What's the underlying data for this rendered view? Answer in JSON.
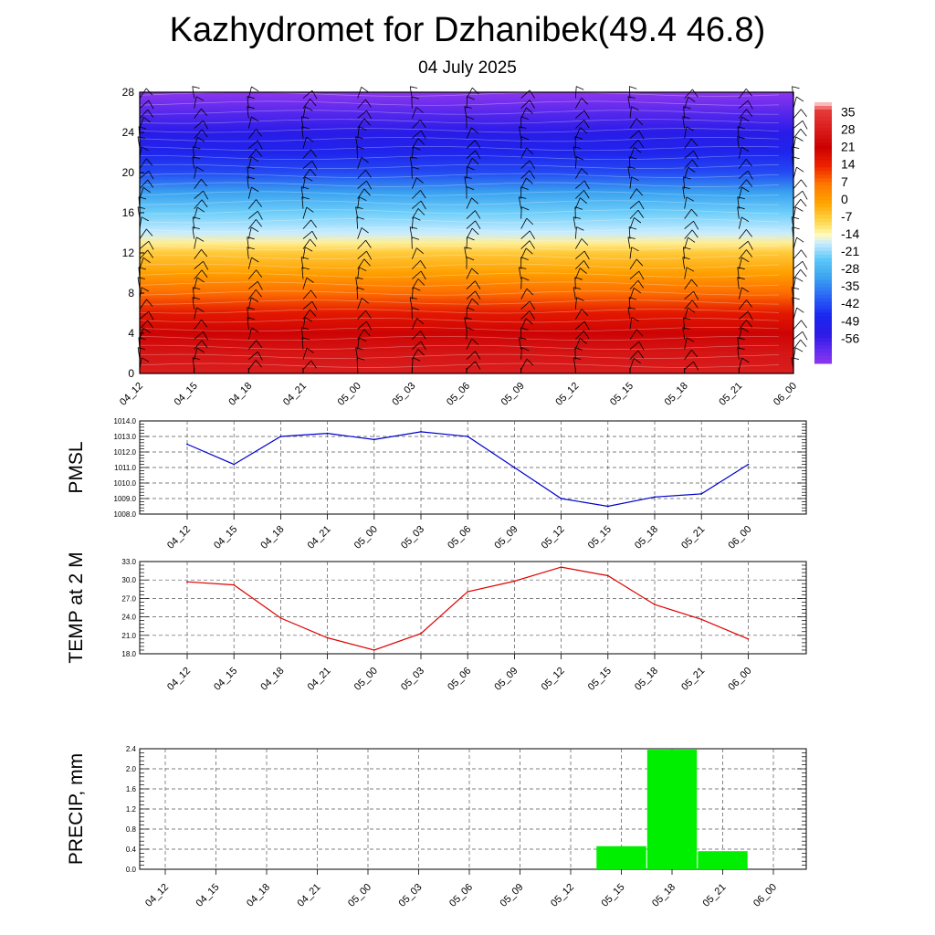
{
  "title": "Kazhydromet for Dzhanibek(49.4 46.8)",
  "subtitle": "04 July 2025",
  "chart_data": [
    {
      "type": "heatmap",
      "title": "",
      "x": [
        "04_12",
        "04_15",
        "04_18",
        "04_21",
        "05_00",
        "05_03",
        "05_06",
        "05_09",
        "05_12",
        "05_15",
        "05_18",
        "05_21",
        "06_00"
      ],
      "y_ticks": [
        0,
        4,
        8,
        12,
        16,
        20,
        24,
        28
      ],
      "ylim": [
        0,
        28
      ],
      "legend": {
        "position": "right",
        "labels": [
          35,
          28,
          21,
          14,
          7,
          0,
          -7,
          -14,
          -21,
          -28,
          -35,
          -42,
          -49,
          -56
        ],
        "color_stops": [
          {
            "v": 38,
            "c": "#ffe0e0"
          },
          {
            "v": 35,
            "c": "#e83a3a"
          },
          {
            "v": 21,
            "c": "#cc0000"
          },
          {
            "v": 14,
            "c": "#ee2200"
          },
          {
            "v": 7,
            "c": "#ff7a00"
          },
          {
            "v": 0,
            "c": "#ffa500"
          },
          {
            "v": -7,
            "c": "#ffd850"
          },
          {
            "v": -12,
            "c": "#fffcc0"
          },
          {
            "v": -15,
            "c": "#c8ecff"
          },
          {
            "v": -21,
            "c": "#5cc8f8"
          },
          {
            "v": -28,
            "c": "#3aa2f0"
          },
          {
            "v": -35,
            "c": "#2a64f6"
          },
          {
            "v": -42,
            "c": "#1a28f0"
          },
          {
            "v": -49,
            "c": "#2c1ae6"
          },
          {
            "v": -56,
            "c": "#6a2ef0"
          },
          {
            "v": -60,
            "c": "#8c36ee"
          }
        ]
      },
      "levels": [
        0,
        2,
        4,
        6,
        8,
        10,
        12,
        13,
        14,
        16,
        18,
        20,
        22,
        24,
        26,
        28
      ],
      "temperature_profile": [
        28,
        26,
        22,
        16,
        8,
        1,
        -5,
        -10,
        -15,
        -20,
        -28,
        -38,
        -44,
        -48,
        -54,
        -60
      ],
      "grid": false
    },
    {
      "type": "line",
      "ylabel": "PMSL",
      "categories": [
        "04_12",
        "04_15",
        "04_18",
        "04_21",
        "05_00",
        "05_03",
        "05_06",
        "05_09",
        "05_12",
        "05_15",
        "05_18",
        "05_21",
        "06_00"
      ],
      "values": [
        1012.5,
        1011.2,
        1013.0,
        1013.2,
        1012.8,
        1013.3,
        1013.0,
        1011.0,
        1009.0,
        1008.5,
        1009.1,
        1009.3,
        1011.2
      ],
      "ylim": [
        1008.0,
        1014.0
      ],
      "y_ticks": [
        "1008.0",
        "1009.0",
        "1010.0",
        "1011.0",
        "1012.0",
        "1013.0",
        "1014.0"
      ],
      "color": "#0000cc",
      "grid": true
    },
    {
      "type": "line",
      "ylabel": "TEMP at 2 M",
      "categories": [
        "04_12",
        "04_15",
        "04_18",
        "04_21",
        "05_00",
        "05_03",
        "05_06",
        "05_09",
        "05_12",
        "05_15",
        "05_18",
        "05_21",
        "06_00"
      ],
      "values": [
        29.7,
        29.2,
        23.8,
        20.6,
        18.6,
        21.3,
        28.1,
        29.8,
        32.1,
        30.7,
        26.0,
        23.6,
        20.4
      ],
      "ylim": [
        18.0,
        33.0
      ],
      "y_ticks": [
        "18.0",
        "21.0",
        "24.0",
        "27.0",
        "30.0",
        "33.0"
      ],
      "color": "#dd0000",
      "grid": true
    },
    {
      "type": "bar",
      "ylabel": "PRECIP, mm",
      "categories": [
        "04_12",
        "04_15",
        "04_18",
        "04_21",
        "05_00",
        "05_03",
        "05_06",
        "05_09",
        "05_12",
        "05_15",
        "05_18",
        "05_21",
        "06_00"
      ],
      "values": [
        0,
        0,
        0,
        0,
        0,
        0,
        0,
        0,
        0,
        0.46,
        2.38,
        0.36,
        0
      ],
      "ylim": [
        0.0,
        2.4
      ],
      "y_ticks": [
        "0.0",
        "0.4",
        "0.8",
        "1.2",
        "1.6",
        "2.0",
        "2.4"
      ],
      "color": "#00ee00",
      "grid": true
    }
  ]
}
